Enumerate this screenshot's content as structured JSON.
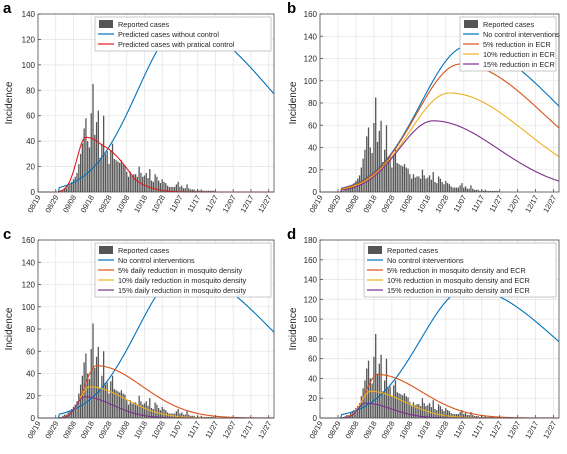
{
  "colors": {
    "bars": "#555555",
    "blue": "#0072BD",
    "red": "#E31A1C",
    "orange": "#D95319",
    "yellow": "#EDB120",
    "purple": "#7E2F8E",
    "grid": "#e6e6e6",
    "axis": "#4d4d4d"
  },
  "chart_data": [
    {
      "panel": "a",
      "type": "bar+line",
      "ylabel": "Incidence",
      "ylim": [
        0,
        140
      ],
      "yticks": [
        0,
        20,
        40,
        60,
        80,
        100,
        120,
        140
      ],
      "xticks": [
        "08/19",
        "08/29",
        "09/08",
        "09/18",
        "09/28",
        "10/08",
        "10/18",
        "10/28",
        "11/07",
        "11/17",
        "11/27",
        "12/07",
        "12/17",
        "12/27"
      ],
      "grid": true,
      "legend_position": "top-right",
      "bar_series_name": "Reported cases",
      "series": [
        {
          "name": "Predicted cases without control",
          "color_key": "blue",
          "shape": "peak",
          "peak_day": 82,
          "peak_value": 131
        },
        {
          "name": "Predicted cases with pratical control",
          "color_key": "red",
          "shape": "controlled",
          "peak_day": 27,
          "peak_value": 43
        }
      ]
    },
    {
      "panel": "b",
      "type": "bar+line",
      "ylabel": "Incidence",
      "ylim": [
        0,
        160
      ],
      "yticks": [
        0,
        20,
        40,
        60,
        80,
        100,
        120,
        140,
        160
      ],
      "xticks": [
        "08/19",
        "08/29",
        "09/08",
        "09/18",
        "09/28",
        "10/08",
        "10/18",
        "10/28",
        "11/07",
        "11/17",
        "11/27",
        "12/07",
        "12/17",
        "12/27"
      ],
      "grid": true,
      "legend_position": "top-right",
      "bar_series_name": "Reported cases",
      "series": [
        {
          "name": "No control interventions",
          "color_key": "blue",
          "shape": "peak",
          "peak_day": 82,
          "peak_value": 131
        },
        {
          "name": "5% reduction in ECR",
          "color_key": "orange",
          "shape": "peak",
          "peak_day": 78,
          "peak_value": 115
        },
        {
          "name": "10% reduction in ECR",
          "color_key": "yellow",
          "shape": "peak",
          "peak_day": 72,
          "peak_value": 89
        },
        {
          "name": "15% reduction in ECR",
          "color_key": "purple",
          "shape": "peak",
          "peak_day": 63,
          "peak_value": 64
        }
      ]
    },
    {
      "panel": "c",
      "type": "bar+line",
      "ylabel": "Incidence",
      "ylim": [
        0,
        160
      ],
      "yticks": [
        0,
        20,
        40,
        60,
        80,
        100,
        120,
        140,
        160
      ],
      "xticks": [
        "08/19",
        "08/29",
        "09/08",
        "09/18",
        "09/28",
        "10/08",
        "10/18",
        "10/28",
        "11/07",
        "11/17",
        "11/27",
        "12/07",
        "12/17",
        "12/27"
      ],
      "grid": true,
      "legend_position": "top-right",
      "bar_series_name": "Reported cases",
      "series": [
        {
          "name": "No control interventions",
          "color_key": "blue",
          "shape": "peak",
          "peak_day": 82,
          "peak_value": 131
        },
        {
          "name": "5% daily reduction in mosquito density",
          "color_key": "orange",
          "shape": "small",
          "peak_day": 33,
          "peak_value": 47
        },
        {
          "name": "10% daily reduction in mosquito density",
          "color_key": "yellow",
          "shape": "small",
          "peak_day": 29,
          "peak_value": 28
        },
        {
          "name": "15% daily reduction in mosquito density",
          "color_key": "purple",
          "shape": "small",
          "peak_day": 26,
          "peak_value": 19
        }
      ]
    },
    {
      "panel": "d",
      "type": "bar+line",
      "ylabel": "Incidence",
      "ylim": [
        0,
        180
      ],
      "yticks": [
        0,
        20,
        40,
        60,
        80,
        100,
        120,
        140,
        160,
        180
      ],
      "xticks": [
        "08/19",
        "08/29",
        "09/08",
        "09/18",
        "09/28",
        "10/08",
        "10/18",
        "10/28",
        "11/07",
        "11/17",
        "11/27",
        "12/07",
        "12/17",
        "12/27"
      ],
      "grid": true,
      "legend_position": "top-right",
      "bar_series_name": "Reported cases",
      "series": [
        {
          "name": "No control interventions",
          "color_key": "blue",
          "shape": "peak",
          "peak_day": 82,
          "peak_value": 131
        },
        {
          "name": "5% reduction in mosquito density and ECR",
          "color_key": "orange",
          "shape": "small",
          "peak_day": 32,
          "peak_value": 44
        },
        {
          "name": "10% reduction in mosquito density and ECR",
          "color_key": "yellow",
          "shape": "small",
          "peak_day": 28,
          "peak_value": 27
        },
        {
          "name": "15% reduction in mosquito density and ECR",
          "color_key": "purple",
          "shape": "small",
          "peak_day": 25,
          "peak_value": 15
        }
      ]
    }
  ],
  "reported_cases": {
    "start_date": "08/31",
    "values": [
      1,
      1,
      2,
      3,
      3,
      5,
      6,
      8,
      10,
      12,
      15,
      22,
      30,
      38,
      50,
      58,
      40,
      35,
      62,
      85,
      45,
      55,
      64,
      27,
      38,
      60,
      30,
      32,
      22,
      33,
      38,
      26,
      25,
      24,
      23,
      25,
      22,
      21,
      16,
      12,
      16,
      13,
      14,
      14,
      12,
      20,
      15,
      12,
      13,
      15,
      11,
      18,
      9,
      8,
      14,
      12,
      9,
      7,
      10,
      8,
      7,
      5,
      4,
      4,
      4,
      4,
      6,
      8,
      4,
      5,
      3,
      3,
      6,
      3,
      2,
      2,
      2,
      1,
      2,
      1,
      2,
      1,
      1,
      1,
      1,
      1,
      1,
      1
    ]
  }
}
